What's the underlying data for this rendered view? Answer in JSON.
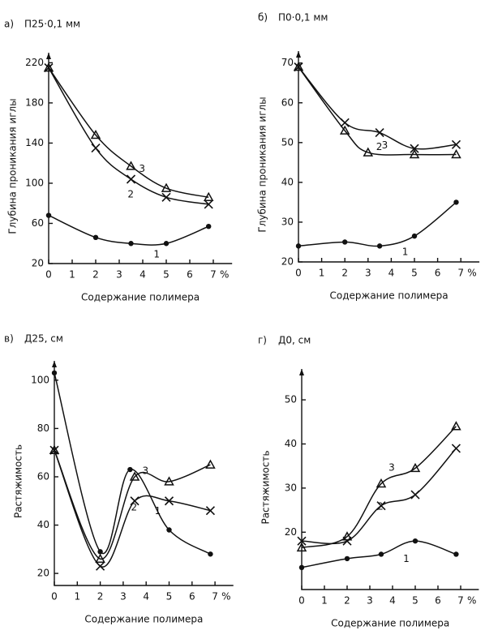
{
  "chart_data": [
    {
      "type": "line",
      "panel": "а)",
      "title": "П25·0,1 мм",
      "y_label": "Глубина проникания иглы",
      "x_label": "Содержание полимера",
      "x_unit": "%",
      "xlim": [
        0,
        7.8
      ],
      "xticks": [
        0,
        1,
        2,
        3,
        4,
        5,
        6,
        7
      ],
      "ylim": [
        20,
        230
      ],
      "yticks": [
        20,
        60,
        100,
        140,
        180,
        220
      ],
      "series": [
        {
          "name": "1",
          "marker": "circle",
          "color": "#111",
          "x": [
            0,
            2,
            3.5,
            5,
            6.8
          ],
          "values": [
            68,
            46,
            40,
            40,
            57
          ]
        },
        {
          "name": "2",
          "marker": "x",
          "color": "#111",
          "x": [
            0,
            2,
            3.5,
            5,
            6.8
          ],
          "values": [
            215,
            135,
            104,
            86,
            79
          ]
        },
        {
          "name": "3",
          "marker": "triangle",
          "color": "#111",
          "x": [
            0,
            2,
            3.5,
            5,
            6.8
          ],
          "values": [
            215,
            148,
            117,
            95,
            86
          ]
        }
      ]
    },
    {
      "type": "line",
      "panel": "б)",
      "title": "П0·0,1 мм",
      "y_label": "Глубина проникания иглы",
      "x_label": "Содержание полимера",
      "x_unit": "%",
      "xlim": [
        0,
        7.8
      ],
      "xticks": [
        0,
        1,
        2,
        3,
        4,
        5,
        6,
        7
      ],
      "ylim": [
        20,
        73
      ],
      "yticks": [
        20,
        30,
        40,
        50,
        60,
        70
      ],
      "series": [
        {
          "name": "1",
          "marker": "circle",
          "color": "#111",
          "x": [
            0,
            2,
            3.5,
            5,
            6.8
          ],
          "values": [
            24,
            25,
            24,
            26.5,
            35
          ]
        },
        {
          "name": "2",
          "marker": "x",
          "color": "#111",
          "x": [
            0,
            2,
            3.5,
            5,
            6.8
          ],
          "values": [
            69,
            55,
            52.5,
            48.5,
            49.5
          ]
        },
        {
          "name": "3",
          "marker": "triangle",
          "color": "#111",
          "x": [
            0,
            2,
            3,
            5,
            6.8
          ],
          "values": [
            69,
            53,
            47.5,
            47,
            47
          ]
        }
      ]
    },
    {
      "type": "line",
      "panel": "в)",
      "title": "Д25, см",
      "y_label": "Растяжимость",
      "x_label": "Содержание полимера",
      "x_unit": "%",
      "xlim": [
        0,
        7.8
      ],
      "xticks": [
        0,
        1,
        2,
        3,
        4,
        5,
        6,
        7
      ],
      "ylim": [
        15,
        108
      ],
      "yticks": [
        20,
        40,
        60,
        80,
        100
      ],
      "series": [
        {
          "name": "1",
          "marker": "circle",
          "color": "#111",
          "x": [
            0,
            2,
            3.3,
            5,
            6.8
          ],
          "values": [
            103,
            29,
            63,
            38,
            28
          ]
        },
        {
          "name": "2",
          "marker": "x",
          "color": "#111",
          "x": [
            0,
            2,
            3.5,
            5,
            6.8
          ],
          "values": [
            71,
            23,
            50,
            50,
            46
          ]
        },
        {
          "name": "3",
          "marker": "triangle",
          "color": "#111",
          "x": [
            0,
            2,
            3.5,
            5,
            6.8
          ],
          "values": [
            71,
            26,
            60,
            58,
            65
          ]
        }
      ]
    },
    {
      "type": "line",
      "panel": "г)",
      "title": "Д0, см",
      "y_label": "Растяжимость",
      "x_label": "Содержание полимера",
      "x_unit": "%",
      "xlim": [
        0,
        7.8
      ],
      "xticks": [
        0,
        1,
        2,
        3,
        4,
        5,
        6,
        7
      ],
      "ylim": [
        7,
        57
      ],
      "yticks": [
        20,
        30,
        40,
        50
      ],
      "series": [
        {
          "name": "1",
          "marker": "circle",
          "color": "#111",
          "x": [
            0,
            2,
            3.5,
            5,
            6.8
          ],
          "values": [
            12,
            14,
            15,
            18,
            15
          ]
        },
        {
          "name": "2",
          "marker": "x",
          "color": "#111",
          "x": [
            0,
            2,
            3.5,
            5,
            6.8
          ],
          "values": [
            18,
            18,
            26,
            28.5,
            39
          ]
        },
        {
          "name": "3",
          "marker": "triangle",
          "color": "#111",
          "x": [
            0,
            2,
            3.5,
            5,
            6.8
          ],
          "values": [
            16.5,
            19,
            31,
            34.5,
            44
          ]
        }
      ]
    }
  ]
}
